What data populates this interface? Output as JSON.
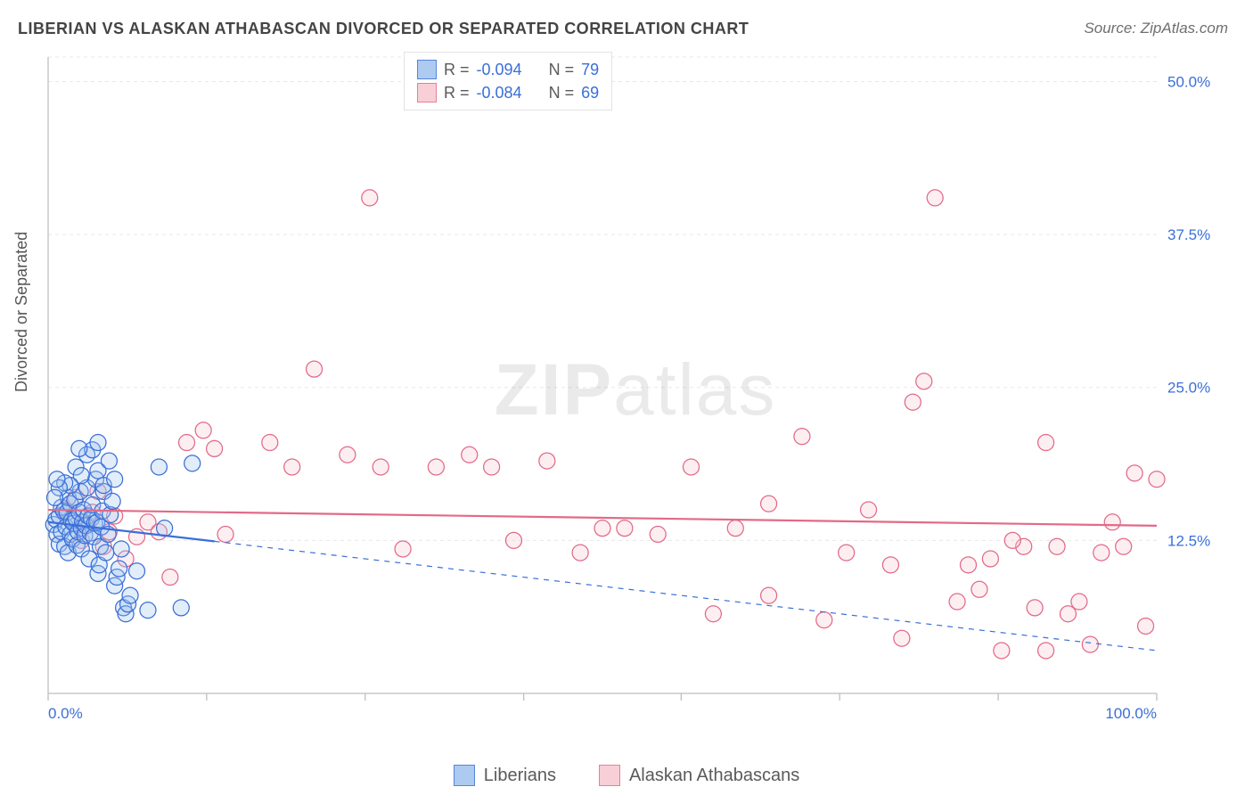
{
  "title": "LIBERIAN VS ALASKAN ATHABASCAN DIVORCED OR SEPARATED CORRELATION CHART",
  "source": "Source: ZipAtlas.com",
  "ylabel": "Divorced or Separated",
  "watermark_a": "ZIP",
  "watermark_b": "atlas",
  "title_fontsize": 18,
  "title_color": "#444444",
  "source_fontsize": 17,
  "ylabel_fontsize": 18,
  "chart": {
    "type": "scatter",
    "background_color": "#ffffff",
    "grid_color": "#e8e8e8",
    "axis_color": "#bdbdbd",
    "tick_color": "#bdbdbd",
    "tick_label_color": "#3a6fd8",
    "tick_fontsize": 17,
    "xlim": [
      0,
      100
    ],
    "ylim": [
      0,
      52
    ],
    "x_ticks": [
      0,
      14.3,
      28.6,
      42.9,
      57.1,
      71.4,
      85.7,
      100
    ],
    "x_tick_labels_shown": {
      "0": "0.0%",
      "100": "100.0%"
    },
    "y_gridlines": [
      12.5,
      25.0,
      37.5,
      50.0
    ],
    "y_tick_labels": [
      "12.5%",
      "25.0%",
      "37.5%",
      "50.0%"
    ],
    "marker_radius": 9,
    "marker_stroke_width": 1.25,
    "marker_fill_opacity": 0.3,
    "trend_line_width": 2.2,
    "series": [
      {
        "name": "Liberians",
        "color_fill": "#9fc2ee",
        "color_stroke": "#3a6fd8",
        "R": "-0.094",
        "N": "79",
        "trend": {
          "style": "solid_then_dashed",
          "solid_end_x": 15,
          "y_at_x0": 14.0,
          "y_at_x100": 3.5
        },
        "points": [
          [
            0.5,
            13.8
          ],
          [
            0.7,
            14.2
          ],
          [
            0.8,
            13.0
          ],
          [
            1.0,
            14.5
          ],
          [
            1.0,
            12.2
          ],
          [
            1.2,
            15.2
          ],
          [
            1.2,
            13.2
          ],
          [
            1.4,
            14.9
          ],
          [
            1.5,
            12.0
          ],
          [
            1.6,
            13.6
          ],
          [
            1.7,
            14.8
          ],
          [
            1.8,
            16.0
          ],
          [
            1.8,
            11.5
          ],
          [
            2.0,
            13.0
          ],
          [
            2.0,
            15.5
          ],
          [
            2.1,
            14.1
          ],
          [
            2.2,
            12.6
          ],
          [
            2.3,
            13.9
          ],
          [
            2.4,
            15.8
          ],
          [
            2.5,
            14.3
          ],
          [
            2.6,
            12.1
          ],
          [
            2.7,
            13.2
          ],
          [
            2.8,
            14.8
          ],
          [
            2.9,
            16.5
          ],
          [
            3.0,
            11.8
          ],
          [
            3.0,
            13.5
          ],
          [
            3.1,
            14.0
          ],
          [
            3.2,
            15.0
          ],
          [
            3.3,
            12.9
          ],
          [
            3.4,
            13.7
          ],
          [
            3.5,
            16.8
          ],
          [
            3.6,
            14.5
          ],
          [
            3.7,
            11.0
          ],
          [
            3.8,
            13.1
          ],
          [
            3.9,
            14.3
          ],
          [
            4.0,
            15.4
          ],
          [
            4.1,
            12.8
          ],
          [
            4.2,
            13.9
          ],
          [
            4.3,
            17.5
          ],
          [
            4.4,
            14.0
          ],
          [
            4.5,
            9.8
          ],
          [
            4.6,
            10.5
          ],
          [
            4.7,
            12.0
          ],
          [
            4.8,
            13.6
          ],
          [
            4.9,
            14.9
          ],
          [
            5.0,
            16.5
          ],
          [
            5.2,
            11.5
          ],
          [
            5.4,
            13.0
          ],
          [
            5.6,
            14.6
          ],
          [
            5.8,
            15.7
          ],
          [
            6.0,
            8.8
          ],
          [
            6.2,
            9.5
          ],
          [
            6.4,
            10.2
          ],
          [
            6.6,
            11.8
          ],
          [
            6.8,
            7.0
          ],
          [
            7.0,
            6.5
          ],
          [
            7.2,
            7.3
          ],
          [
            7.4,
            8.0
          ],
          [
            3.5,
            19.5
          ],
          [
            2.5,
            18.5
          ],
          [
            4.0,
            19.9
          ],
          [
            3.0,
            17.8
          ],
          [
            4.5,
            18.2
          ],
          [
            5.0,
            17.0
          ],
          [
            5.5,
            19.0
          ],
          [
            6.0,
            17.5
          ],
          [
            4.5,
            20.5
          ],
          [
            2.0,
            17.0
          ],
          [
            2.8,
            20.0
          ],
          [
            1.5,
            17.2
          ],
          [
            1.0,
            16.8
          ],
          [
            0.8,
            17.5
          ],
          [
            0.6,
            16.0
          ],
          [
            10.0,
            18.5
          ],
          [
            10.5,
            13.5
          ],
          [
            12.0,
            7.0
          ],
          [
            13.0,
            18.8
          ],
          [
            9.0,
            6.8
          ],
          [
            8.0,
            10.0
          ]
        ]
      },
      {
        "name": "Alaskan Athabascans",
        "color_fill": "#f7c7d1",
        "color_stroke": "#e26a87",
        "R": "-0.084",
        "N": "69",
        "trend": {
          "style": "solid",
          "y_at_x0": 15.0,
          "y_at_x100": 13.7
        },
        "points": [
          [
            1.5,
            15.0
          ],
          [
            2.0,
            14.2
          ],
          [
            2.5,
            16.0
          ],
          [
            3.0,
            12.5
          ],
          [
            3.5,
            13.8
          ],
          [
            4.0,
            14.8
          ],
          [
            4.5,
            16.5
          ],
          [
            5.0,
            12.0
          ],
          [
            5.5,
            13.2
          ],
          [
            6.0,
            14.5
          ],
          [
            7.0,
            11.0
          ],
          [
            8.0,
            12.8
          ],
          [
            9.0,
            14.0
          ],
          [
            10.0,
            13.2
          ],
          [
            11.0,
            9.5
          ],
          [
            12.5,
            20.5
          ],
          [
            14.0,
            21.5
          ],
          [
            15.0,
            20.0
          ],
          [
            16.0,
            13.0
          ],
          [
            20.0,
            20.5
          ],
          [
            22.0,
            18.5
          ],
          [
            24.0,
            26.5
          ],
          [
            27.0,
            19.5
          ],
          [
            29.0,
            40.5
          ],
          [
            30.0,
            18.5
          ],
          [
            32.0,
            11.8
          ],
          [
            35.0,
            18.5
          ],
          [
            38.0,
            19.5
          ],
          [
            40.0,
            18.5
          ],
          [
            42.0,
            12.5
          ],
          [
            45.0,
            19.0
          ],
          [
            48.0,
            11.5
          ],
          [
            50.0,
            13.5
          ],
          [
            52.0,
            13.5
          ],
          [
            55.0,
            13.0
          ],
          [
            58.0,
            18.5
          ],
          [
            60.0,
            6.5
          ],
          [
            62.0,
            13.5
          ],
          [
            65.0,
            15.5
          ],
          [
            68.0,
            21.0
          ],
          [
            70.0,
            6.0
          ],
          [
            72.0,
            11.5
          ],
          [
            74.0,
            15.0
          ],
          [
            76.0,
            10.5
          ],
          [
            77.0,
            4.5
          ],
          [
            78.0,
            23.8
          ],
          [
            79.0,
            25.5
          ],
          [
            80.0,
            40.5
          ],
          [
            82.0,
            7.5
          ],
          [
            83.0,
            10.5
          ],
          [
            84.0,
            8.5
          ],
          [
            85.0,
            11.0
          ],
          [
            86.0,
            3.5
          ],
          [
            88.0,
            12.0
          ],
          [
            89.0,
            7.0
          ],
          [
            90.0,
            20.5
          ],
          [
            91.0,
            12.0
          ],
          [
            92.0,
            6.5
          ],
          [
            93.0,
            7.5
          ],
          [
            94.0,
            4.0
          ],
          [
            95.0,
            11.5
          ],
          [
            96.0,
            14.0
          ],
          [
            97.0,
            12.0
          ],
          [
            98.0,
            18.0
          ],
          [
            99.0,
            5.5
          ],
          [
            100.0,
            17.5
          ],
          [
            90.0,
            3.5
          ],
          [
            87.0,
            12.5
          ],
          [
            65.0,
            8.0
          ]
        ]
      }
    ]
  },
  "stats_legend": {
    "R_label": "R =",
    "N_label": "N ="
  },
  "bottom_legend_fontsize": 20
}
